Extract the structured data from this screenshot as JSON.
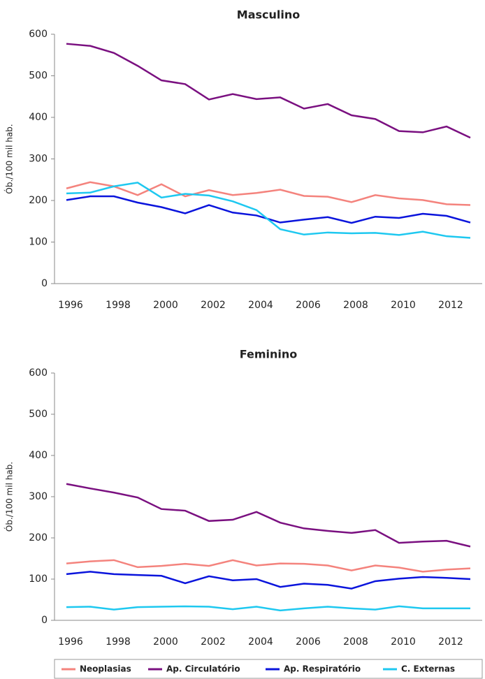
{
  "chart_data": [
    {
      "type": "line",
      "title": "Masculino",
      "y_label": "Ób./100 mil hab.",
      "categories": [
        "1996",
        null,
        "1998",
        null,
        "2000",
        null,
        "2002",
        null,
        "2004",
        null,
        "2006",
        null,
        "2008",
        null,
        "2010",
        null,
        "2012",
        null
      ],
      "ylim": [
        0,
        600
      ],
      "yticks": [
        0,
        100,
        200,
        300,
        400,
        500,
        600
      ],
      "series": [
        {
          "name": "Neoplasias",
          "color": "#f4837d",
          "values": [
            229,
            244,
            234,
            213,
            239,
            210,
            225,
            213,
            218,
            226,
            211,
            209,
            196,
            213,
            205,
            201,
            191,
            189
          ]
        },
        {
          "name": "Ap. Circulatório",
          "color": "#7a1080",
          "values": [
            577,
            572,
            555,
            524,
            489,
            480,
            443,
            456,
            444,
            448,
            421,
            432,
            405,
            396,
            367,
            364,
            378,
            351
          ]
        },
        {
          "name": "Ap. Respiratório",
          "color": "#0a14dc",
          "values": [
            201,
            210,
            210,
            195,
            184,
            169,
            189,
            171,
            164,
            147,
            154,
            160,
            146,
            161,
            158,
            168,
            163,
            147
          ]
        },
        {
          "name": "C. Externas",
          "color": "#1ec8f0",
          "values": [
            217,
            219,
            234,
            243,
            207,
            216,
            212,
            198,
            177,
            131,
            118,
            123,
            121,
            122,
            117,
            125,
            114,
            110
          ]
        }
      ]
    },
    {
      "type": "line",
      "title": "Feminino",
      "y_label": "Ób./100 mil hab.",
      "categories": [
        "1996",
        null,
        "1998",
        null,
        "2000",
        null,
        "2002",
        null,
        "2004",
        null,
        "2006",
        null,
        "2008",
        null,
        "2010",
        null,
        "2012",
        null
      ],
      "ylim": [
        0,
        600
      ],
      "yticks": [
        0,
        100,
        200,
        300,
        400,
        500,
        600
      ],
      "series": [
        {
          "name": "Neoplasias",
          "color": "#f4837d",
          "values": [
            138,
            143,
            146,
            129,
            132,
            137,
            132,
            146,
            133,
            138,
            137,
            133,
            121,
            133,
            128,
            118,
            123,
            126
          ]
        },
        {
          "name": "Ap. Circulatório",
          "color": "#7a1080",
          "values": [
            331,
            320,
            310,
            298,
            270,
            266,
            241,
            244,
            263,
            237,
            223,
            217,
            212,
            219,
            188,
            191,
            193,
            179
          ]
        },
        {
          "name": "Ap. Respiratório",
          "color": "#0a14dc",
          "values": [
            112,
            118,
            112,
            110,
            108,
            90,
            107,
            97,
            100,
            81,
            89,
            86,
            77,
            95,
            101,
            105,
            103,
            100
          ]
        },
        {
          "name": "C. Externas",
          "color": "#1ec8f0",
          "values": [
            32,
            33,
            26,
            32,
            33,
            34,
            33,
            27,
            33,
            24,
            29,
            33,
            29,
            26,
            34,
            29,
            29,
            29
          ]
        }
      ]
    }
  ]
}
